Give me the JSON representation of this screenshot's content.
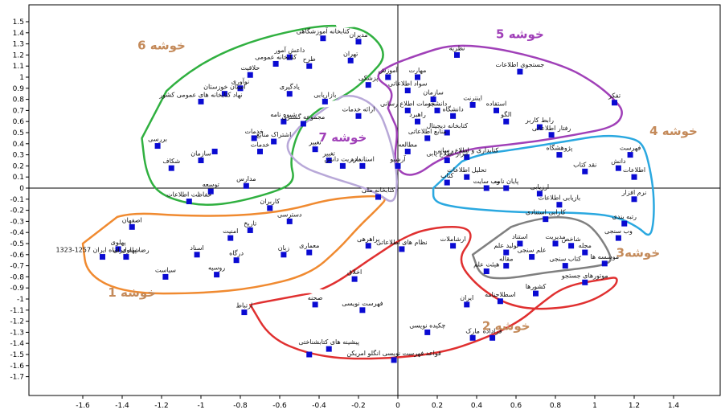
{
  "chart_data": {
    "type": "scatter",
    "title": "",
    "xlabel": "",
    "ylabel": "",
    "xlim": [
      -1.75,
      1.55
    ],
    "ylim": [
      -1.75,
      1.55
    ],
    "x_ticks": [
      -1.6,
      -1.4,
      -1.2,
      -1,
      -0.8,
      -0.6,
      -0.4,
      -0.2,
      0,
      0.2,
      0.4,
      0.6,
      0.8,
      1,
      1.2,
      1.4
    ],
    "y_ticks": [
      1.5,
      1.4,
      1.3,
      1.2,
      1.1,
      1,
      0.9,
      0.8,
      0.7,
      0.6,
      0.5,
      0.4,
      0.3,
      0.2,
      0.1,
      0,
      -0.1,
      -0.2,
      -0.3,
      -0.4,
      -0.5,
      -0.6,
      -0.7,
      -0.8,
      -0.9,
      -1,
      -1.1,
      -1.2,
      -1.3,
      -1.4,
      -1.5,
      -1.6,
      -1.7
    ],
    "grid": false,
    "marker_color": "#0a0ad2",
    "points": [
      {
        "x": -0.38,
        "y": 1.35,
        "label": "کتابخانه آموزشگاهی"
      },
      {
        "x": -0.2,
        "y": 1.32,
        "label": "مدیران"
      },
      {
        "x": -0.55,
        "y": 1.18,
        "label": "داعش آمور"
      },
      {
        "x": -0.62,
        "y": 1.12,
        "label": "کتابخانه عمومی"
      },
      {
        "x": -0.45,
        "y": 1.1,
        "label": "طرح"
      },
      {
        "x": -0.24,
        "y": 1.15,
        "label": "تهران"
      },
      {
        "x": -0.75,
        "y": 1.02,
        "label": "حلاقیت"
      },
      {
        "x": -0.8,
        "y": 0.9,
        "label": "نوآوری"
      },
      {
        "x": -0.88,
        "y": 0.85,
        "label": "استان خوزستان"
      },
      {
        "x": -1.0,
        "y": 0.78,
        "label": "نهاد کتابخانه های عمومی کشور"
      },
      {
        "x": -0.55,
        "y": 0.85,
        "label": "یادگیری"
      },
      {
        "x": -0.37,
        "y": 0.78,
        "label": "بازاریابی"
      },
      {
        "x": -0.48,
        "y": 0.58,
        "label": "مجموعه گستری"
      },
      {
        "x": -0.58,
        "y": 0.6,
        "label": "شیوه نامه"
      },
      {
        "x": -0.63,
        "y": 0.42,
        "label": "اشتراک منابع"
      },
      {
        "x": -0.73,
        "y": 0.45,
        "label": "خدمات"
      },
      {
        "x": -0.7,
        "y": 0.33,
        "label": "خدمات"
      },
      {
        "x": -1.22,
        "y": 0.38,
        "label": "بررسی"
      },
      {
        "x": -1.0,
        "y": 0.25,
        "label": "سازمان"
      },
      {
        "x": -0.93,
        "y": 0.33,
        "label": ""
      },
      {
        "x": -1.15,
        "y": 0.18,
        "label": "شکاف"
      },
      {
        "x": -0.77,
        "y": 0.02,
        "label": "مدارس"
      },
      {
        "x": -0.95,
        "y": -0.03,
        "label": "توسعه"
      },
      {
        "x": -1.06,
        "y": -0.12,
        "label": "حفاظت اطلاعات"
      },
      {
        "x": -0.42,
        "y": 0.35,
        "label": "تغییر"
      },
      {
        "x": -0.35,
        "y": 0.25,
        "label": "تغییر"
      },
      {
        "x": -0.28,
        "y": 0.2,
        "label": "مدیریت دانش"
      },
      {
        "x": -0.2,
        "y": 0.65,
        "label": "ارائه خدمات"
      },
      {
        "x": -0.18,
        "y": 0.2,
        "label": "استاندارد"
      },
      {
        "x": -0.1,
        "y": -0.08,
        "label": "کتابخانه ملی"
      },
      {
        "x": -0.15,
        "y": 0.93,
        "label": "پزشکی"
      },
      {
        "x": -0.05,
        "y": 1.0,
        "label": "آموزش"
      },
      {
        "x": 0.05,
        "y": 0.88,
        "label": "سواد اطلاعاتی"
      },
      {
        "x": 0.1,
        "y": 1.0,
        "label": "مهارت"
      },
      {
        "x": 0.05,
        "y": 0.7,
        "label": "خدمات اطلاع رسانی"
      },
      {
        "x": 0.1,
        "y": 0.6,
        "label": "راهبرد"
      },
      {
        "x": 0.18,
        "y": 0.8,
        "label": "سازمان"
      },
      {
        "x": 0.2,
        "y": 0.7,
        "label": "دانشجو"
      },
      {
        "x": 0.3,
        "y": 1.2,
        "label": "نظریه"
      },
      {
        "x": 0.28,
        "y": 0.65,
        "label": "دانشگاه"
      },
      {
        "x": 0.38,
        "y": 0.75,
        "label": "اینترنت"
      },
      {
        "x": 0.5,
        "y": 0.7,
        "label": "استفاده"
      },
      {
        "x": 0.55,
        "y": 0.6,
        "label": "الگو"
      },
      {
        "x": 0.62,
        "y": 1.05,
        "label": "جستجوی اطلاعات"
      },
      {
        "x": 0.72,
        "y": 0.55,
        "label": "رابط کاربر"
      },
      {
        "x": 0.78,
        "y": 0.48,
        "label": "رفتار اطلاعاتی"
      },
      {
        "x": 1.1,
        "y": 0.77,
        "label": "تفکر"
      },
      {
        "x": 0.25,
        "y": 0.5,
        "label": "کتابخانه دیجیتال"
      },
      {
        "x": 0.15,
        "y": 0.45,
        "label": "منابع اطلاعاتی"
      },
      {
        "x": 0.05,
        "y": 0.33,
        "label": "مطالعه"
      },
      {
        "x": 0.35,
        "y": 0.28,
        "label": "کتابداری و اطلاع رسانی"
      },
      {
        "x": 0.25,
        "y": 0.25,
        "label": "ابزار اطلاع یابی"
      },
      {
        "x": 0.0,
        "y": 0.2,
        "label": "آرشیو"
      },
      {
        "x": 0.35,
        "y": 0.1,
        "label": "تحلیل اطلاعات"
      },
      {
        "x": 0.25,
        "y": 0.05,
        "label": "کتاب"
      },
      {
        "x": 0.45,
        "y": 0.0,
        "label": "وب سایت"
      },
      {
        "x": 0.55,
        "y": 0.0,
        "label": "پایان نامه"
      },
      {
        "x": 0.72,
        "y": -0.05,
        "label": "ارزیابی"
      },
      {
        "x": 0.82,
        "y": 0.3,
        "label": "پژوهشگاه"
      },
      {
        "x": 0.95,
        "y": 0.15,
        "label": "نقد کتاب"
      },
      {
        "x": 1.18,
        "y": 0.3,
        "label": "فهرست"
      },
      {
        "x": 1.12,
        "y": 0.18,
        "label": "دانش"
      },
      {
        "x": 1.2,
        "y": 0.1,
        "label": "اطلاعات"
      },
      {
        "x": 1.2,
        "y": -0.1,
        "label": "نرم افزار"
      },
      {
        "x": 0.82,
        "y": -0.15,
        "label": "بازیابی اطلاعات"
      },
      {
        "x": 0.75,
        "y": -0.28,
        "label": "کارایی استنادی"
      },
      {
        "x": 1.15,
        "y": -0.32,
        "label": "رتبه بندی"
      },
      {
        "x": 1.12,
        "y": -0.45,
        "label": "وب سنجی"
      },
      {
        "x": 0.8,
        "y": -0.5,
        "label": "مدیریت"
      },
      {
        "x": 0.62,
        "y": -0.5,
        "label": "استناد"
      },
      {
        "x": 0.55,
        "y": -0.58,
        "label": "تولید علم"
      },
      {
        "x": 0.68,
        "y": -0.62,
        "label": "علم سنجی"
      },
      {
        "x": 0.88,
        "y": -0.52,
        "label": "شاخص"
      },
      {
        "x": 0.95,
        "y": -0.58,
        "label": "مجله"
      },
      {
        "x": 0.85,
        "y": -0.7,
        "label": "کتاب سنجی"
      },
      {
        "x": 1.05,
        "y": -0.68,
        "label": "موسسه ها"
      },
      {
        "x": 0.55,
        "y": -0.7,
        "label": "مقاله"
      },
      {
        "x": 0.45,
        "y": -0.75,
        "label": "هیئت علم"
      },
      {
        "x": 0.95,
        "y": -0.85,
        "label": "موتورهای جستجو"
      },
      {
        "x": 0.7,
        "y": -0.95,
        "label": "کشورها"
      },
      {
        "x": 0.52,
        "y": -1.02,
        "label": "اسطلاحنامه"
      },
      {
        "x": 0.35,
        "y": -1.05,
        "label": "ایران"
      },
      {
        "x": 0.28,
        "y": -0.52,
        "label": "ارشاملات"
      },
      {
        "x": 0.02,
        "y": -0.55,
        "label": "نظام های اطلاعاتی"
      },
      {
        "x": -0.15,
        "y": -0.52,
        "label": "پراهرهی"
      },
      {
        "x": -0.22,
        "y": -0.82,
        "label": "اخلاق"
      },
      {
        "x": -0.42,
        "y": -1.05,
        "label": "صحنه"
      },
      {
        "x": -0.18,
        "y": -1.1,
        "label": "فهرست نویسی"
      },
      {
        "x": -0.78,
        "y": -1.12,
        "label": "ارتباط"
      },
      {
        "x": 0.15,
        "y": -1.3,
        "label": "چکیده نویسی"
      },
      {
        "x": 0.38,
        "y": -1.35,
        "label": "مارک"
      },
      {
        "x": 0.48,
        "y": -1.35,
        "label": "فراداده"
      },
      {
        "x": -0.35,
        "y": -1.45,
        "label": "پیشینه های کتابشناختی"
      },
      {
        "x": -0.45,
        "y": -1.5,
        "label": ""
      },
      {
        "x": -0.02,
        "y": -1.55,
        "label": "قواعد فهرست نویسی انگلو امریکن"
      },
      {
        "x": -0.65,
        "y": -0.18,
        "label": "کاربران"
      },
      {
        "x": -0.55,
        "y": -0.3,
        "label": "دسترسی"
      },
      {
        "x": -0.75,
        "y": -0.38,
        "label": "تاریخ"
      },
      {
        "x": -0.85,
        "y": -0.45,
        "label": "امنیت"
      },
      {
        "x": -0.58,
        "y": -0.6,
        "label": "زبان"
      },
      {
        "x": -0.45,
        "y": -0.58,
        "label": "معماری"
      },
      {
        "x": -1.02,
        "y": -0.6,
        "label": "اسناد"
      },
      {
        "x": -0.82,
        "y": -0.65,
        "label": "درگاه"
      },
      {
        "x": -0.92,
        "y": -0.78,
        "label": "روسیه"
      },
      {
        "x": -1.18,
        "y": -0.8,
        "label": "سیاست"
      },
      {
        "x": -1.35,
        "y": -0.35,
        "label": "اصفهان"
      },
      {
        "x": -1.42,
        "y": -0.55,
        "label": "پهلوی"
      },
      {
        "x": -1.5,
        "y": -0.62,
        "label": "رضا پهلوی شاه ایران 1257-1323"
      },
      {
        "x": -1.38,
        "y": -0.62,
        "label": "شاه ایران"
      }
    ],
    "clusters": [
      {
        "name": "خوشه 1",
        "color": "#f08a30"
      },
      {
        "name": "خوشه 2",
        "color": "#e03030"
      },
      {
        "name": "خوشه3",
        "color": "#808080"
      },
      {
        "name": "خوشه 4",
        "color": "#2aa8e0"
      },
      {
        "name": "خوشه 5",
        "color": "#a040b8"
      },
      {
        "name": "خوشه 6",
        "color": "#30b040"
      },
      {
        "name": "خوشه 7",
        "color": "#b8a8d8"
      }
    ],
    "cluster_label_color": "#c48a5a",
    "cluster_label_color_5": "#a040b8",
    "cluster_label_color_7": "#a040b8"
  }
}
